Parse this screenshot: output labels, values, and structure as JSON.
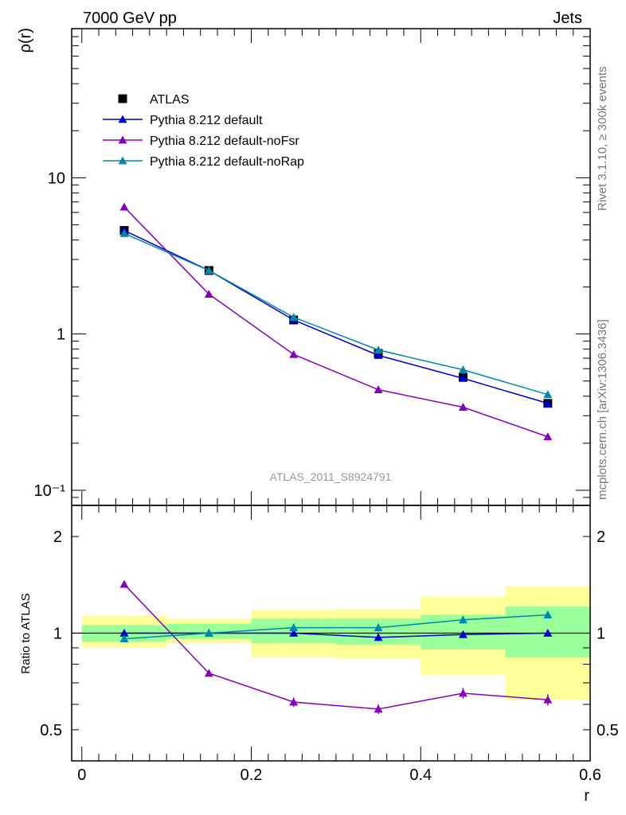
{
  "header": {
    "left_title": "7000 GeV pp",
    "right_title": "Jets",
    "side_label_top": "Rivet 3.1.10, ≥ 300k events",
    "side_label_bottom": "mcplots.cern.ch [arXiv:1306.3436]",
    "analysis_id": "ATLAS_2011_S8924791"
  },
  "colors": {
    "atlas": "#000000",
    "default": "#0000cc",
    "noFsr": "#8800bb",
    "noRap": "#0088aa",
    "band_outer": "#ffff99",
    "band_inner": "#99ff99"
  },
  "chart_data": [
    {
      "type": "line",
      "panel": "main",
      "ylabel": "ρ(r)",
      "yscale": "log",
      "ylim": [
        0.08,
        90
      ],
      "xlim": [
        -0.012,
        0.6
      ],
      "y_ticks": [
        {
          "value": 10,
          "label": "10"
        },
        {
          "value": 1,
          "label": "1"
        },
        {
          "value": 0.1,
          "label": "10⁻¹"
        }
      ],
      "x": [
        0.05,
        0.15,
        0.25,
        0.35,
        0.45,
        0.55
      ],
      "legend": [
        "ATLAS",
        "Pythia 8.212 default",
        "Pythia 8.212 default-noFsr",
        "Pythia 8.212 default-noRap"
      ],
      "series": [
        {
          "name": "ATLAS",
          "key": "atlas",
          "marker": "square",
          "values": [
            4.6,
            2.55,
            1.23,
            0.75,
            0.53,
            0.36
          ]
        },
        {
          "name": "Pythia 8.212 default",
          "key": "default",
          "marker": "triangle",
          "values": [
            4.6,
            2.55,
            1.23,
            0.73,
            0.52,
            0.36
          ]
        },
        {
          "name": "Pythia 8.212 default-noFsr",
          "key": "noFsr",
          "marker": "triangle",
          "values": [
            6.5,
            1.8,
            0.74,
            0.44,
            0.34,
            0.22
          ]
        },
        {
          "name": "Pythia 8.212 default-noRap",
          "key": "noRap",
          "marker": "triangle",
          "values": [
            4.4,
            2.55,
            1.28,
            0.79,
            0.59,
            0.41
          ]
        }
      ]
    },
    {
      "type": "line",
      "panel": "ratio",
      "ylabel": "Ratio to ATLAS",
      "xlabel": "r",
      "yscale": "log",
      "ylim": [
        0.4,
        2.5
      ],
      "xlim": [
        -0.012,
        0.6
      ],
      "x_ticks": [
        {
          "value": 0,
          "label": "0"
        },
        {
          "value": 0.2,
          "label": "0.2"
        },
        {
          "value": 0.4,
          "label": "0.4"
        },
        {
          "value": 0.6,
          "label": "0.6"
        }
      ],
      "y_ticks": [
        {
          "value": 2,
          "label": "2"
        },
        {
          "value": 1,
          "label": "1"
        },
        {
          "value": 0.5,
          "label": "0.5"
        }
      ],
      "bins": [
        [
          0.0,
          0.1
        ],
        [
          0.1,
          0.2
        ],
        [
          0.2,
          0.3
        ],
        [
          0.3,
          0.4
        ],
        [
          0.4,
          0.5
        ],
        [
          0.5,
          0.6
        ]
      ],
      "band_outer": [
        [
          0.9,
          1.13
        ],
        [
          0.93,
          1.11
        ],
        [
          0.84,
          1.18
        ],
        [
          0.83,
          1.19
        ],
        [
          0.74,
          1.3
        ],
        [
          0.62,
          1.4
        ]
      ],
      "band_inner": [
        [
          0.94,
          1.06
        ],
        [
          0.96,
          1.07
        ],
        [
          0.93,
          1.11
        ],
        [
          0.92,
          1.11
        ],
        [
          0.89,
          1.14
        ],
        [
          0.84,
          1.21
        ]
      ],
      "x": [
        0.05,
        0.15,
        0.25,
        0.35,
        0.45,
        0.55
      ],
      "series": [
        {
          "name": "Pythia 8.212 default",
          "key": "default",
          "values": [
            1.0,
            1.0,
            1.0,
            0.97,
            0.99,
            1.0
          ],
          "err": [
            0.015,
            0.015,
            0.025,
            0.025,
            0.025,
            0.025
          ]
        },
        {
          "name": "Pythia 8.212 default-noFsr",
          "key": "noFsr",
          "values": [
            1.42,
            0.75,
            0.61,
            0.58,
            0.65,
            0.62
          ],
          "err": [
            0.015,
            0.015,
            0.02,
            0.02,
            0.025,
            0.025
          ]
        },
        {
          "name": "Pythia 8.212 default-noRap",
          "key": "noRap",
          "values": [
            0.96,
            1.0,
            1.04,
            1.04,
            1.1,
            1.14
          ],
          "err": [
            0.015,
            0.015,
            0.03,
            0.03,
            0.03,
            0.03
          ]
        }
      ]
    }
  ]
}
